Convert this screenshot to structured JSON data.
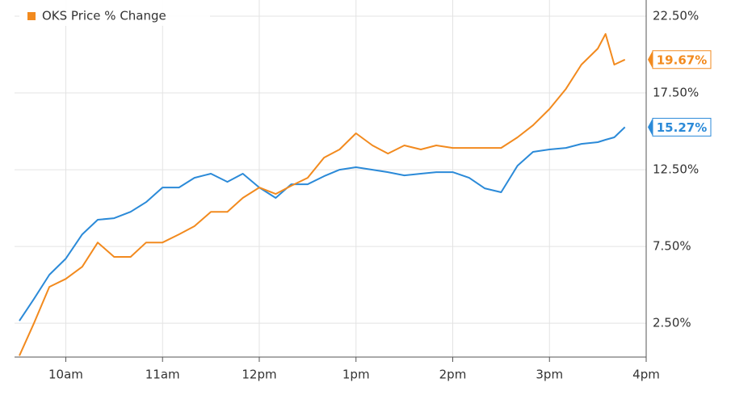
{
  "chart_data": {
    "type": "line",
    "x": [
      9.52,
      9.67,
      9.83,
      10,
      10.17,
      10.33,
      10.5,
      10.67,
      10.83,
      11,
      11.17,
      11.33,
      11.5,
      11.67,
      11.83,
      12,
      12.17,
      12.33,
      12.5,
      12.67,
      12.83,
      13,
      13.17,
      13.33,
      13.5,
      13.67,
      13.83,
      14,
      14.17,
      14.33,
      14.5,
      14.67,
      14.83,
      15,
      15.17,
      15.33,
      15.5,
      15.58,
      15.67,
      15.78
    ],
    "series": [
      {
        "color": "#2b8ad8",
        "values": [
          2.66,
          4.08,
          5.66,
          6.71,
          8.29,
          9.24,
          9.34,
          9.76,
          10.39,
          11.34,
          11.34,
          11.97,
          12.24,
          11.71,
          12.24,
          11.34,
          10.66,
          11.55,
          11.55,
          12.08,
          12.5,
          12.66,
          12.5,
          12.34,
          12.13,
          12.24,
          12.34,
          12.34,
          11.97,
          11.29,
          11.03,
          12.76,
          13.66,
          13.82,
          13.92,
          14.18,
          14.29,
          14.45,
          14.61,
          15.27
        ],
        "value_labels": [
          null,
          null,
          null,
          null,
          null,
          null,
          null,
          null,
          null,
          null,
          null,
          null,
          null,
          null,
          null,
          null,
          null,
          null,
          null,
          null,
          null,
          null,
          null,
          null,
          null,
          null,
          null,
          null,
          null,
          null,
          null,
          null,
          null,
          null,
          null,
          null,
          null,
          null,
          null,
          "15.27%"
        ]
      },
      {
        "name": "OKS Price % Change",
        "color": "#f28a1e",
        "values": [
          0.39,
          2.5,
          4.87,
          5.39,
          6.18,
          7.76,
          6.82,
          6.82,
          7.76,
          7.76,
          8.29,
          8.82,
          9.76,
          9.76,
          10.66,
          11.34,
          10.92,
          11.45,
          11.97,
          13.29,
          13.82,
          14.87,
          14.08,
          13.55,
          14.08,
          13.82,
          14.08,
          13.92,
          13.92,
          13.92,
          13.92,
          14.61,
          15.39,
          16.45,
          17.76,
          19.34,
          20.39,
          21.34,
          19.34,
          19.67
        ],
        "value_labels": [
          null,
          null,
          null,
          null,
          null,
          null,
          null,
          null,
          null,
          null,
          null,
          null,
          null,
          null,
          null,
          null,
          null,
          null,
          null,
          null,
          null,
          null,
          null,
          null,
          null,
          null,
          null,
          null,
          null,
          null,
          null,
          null,
          null,
          null,
          null,
          null,
          null,
          null,
          null,
          "19.67%"
        ]
      }
    ],
    "xlim": [
      9.47,
      16.0
    ],
    "xticks": [
      {
        "value": 10,
        "label": "10am"
      },
      {
        "value": 11,
        "label": "11am"
      },
      {
        "value": 12,
        "label": "12pm"
      },
      {
        "value": 13,
        "label": "1pm"
      },
      {
        "value": 14,
        "label": "2pm"
      },
      {
        "value": 15,
        "label": "3pm"
      },
      {
        "value": 16,
        "label": "4pm"
      }
    ],
    "ylim": [
      0.3,
      23.55
    ],
    "yticks": [
      {
        "value": 2.5,
        "label": "2.50%"
      },
      {
        "value": 7.5,
        "label": "7.50%"
      },
      {
        "value": 12.5,
        "label": "12.50%"
      },
      {
        "value": 17.5,
        "label": "17.50%"
      },
      {
        "value": 22.5,
        "label": "22.50%"
      }
    ],
    "grid": true,
    "legend": "top-left"
  }
}
